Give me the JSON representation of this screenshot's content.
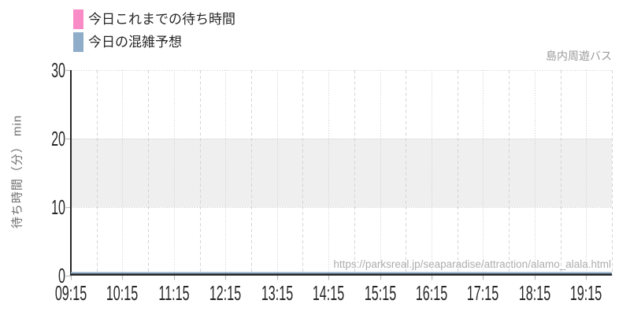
{
  "chart_data": {
    "type": "line",
    "title": "",
    "ylabel": "待ち時間（分） min",
    "ylim": [
      0,
      30
    ],
    "y_ticks": [
      0,
      10,
      20,
      30
    ],
    "x_ticks": [
      "09:15",
      "10:15",
      "11:15",
      "12:15",
      "13:15",
      "14:15",
      "15:15",
      "16:15",
      "17:15",
      "18:15",
      "19:15"
    ],
    "x_right_extend_hours": 0.5,
    "grid": true,
    "legend_position": "top-left",
    "band": {
      "from": 10,
      "to": 20,
      "color": "#efefef"
    },
    "series": [
      {
        "name": "今日これまでの待ち時間",
        "color": "#f98cc6",
        "values": [
          0,
          0,
          0,
          0,
          0,
          0,
          0,
          0,
          0,
          0,
          0
        ]
      },
      {
        "name": "今日の混雑予想",
        "color": "#8fadc9",
        "values": [
          0,
          0,
          0,
          0,
          0,
          0,
          0,
          0,
          0,
          0,
          0
        ]
      }
    ],
    "annotation_top_right": "島内周遊バス",
    "watermark": "https://parksreal.jp/seaparadise/attraction/alamo_alala.html"
  },
  "colors": {
    "text": "#262626",
    "muted_text": "#9a9a9a",
    "watermark_text": "#adadad",
    "grid_dotted": "#c9c9c9",
    "grid_dashed": "#d4d4d4",
    "axis": "#262626",
    "tick_mark": "#bdbdbd",
    "background": "#ffffff"
  }
}
